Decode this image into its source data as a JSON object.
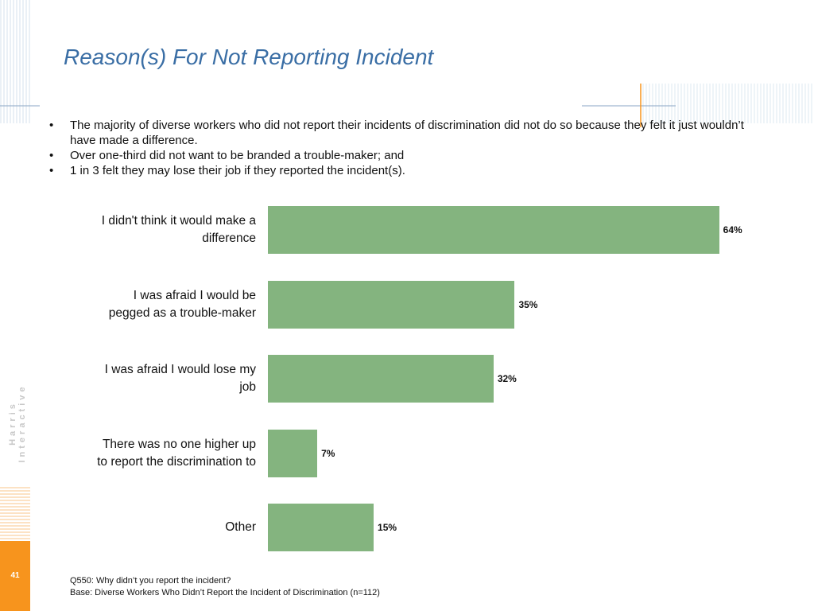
{
  "chart_data": {
    "type": "bar",
    "orientation": "horizontal",
    "title": "Reason(s) For Not Reporting Incident",
    "categories": [
      "I didn't think it would make a difference",
      "I was afraid I would be pegged as a trouble-maker",
      "I was afraid I would lose my job",
      "There was no one higher up to report the discrimination to",
      "Other"
    ],
    "values": [
      64,
      35,
      32,
      7,
      15
    ],
    "value_labels": [
      "64%",
      "35%",
      "32%",
      "7%",
      "15%"
    ],
    "color": "#84b47f"
  },
  "bullets": [
    "The majority of diverse workers who did not report their incidents of discrimination did not do so because they felt it just wouldn’t have made a difference.",
    "Over one-third did not want to be branded a trouble-maker; and",
    "1 in 3 felt they may lose their job if they reported the incident(s)."
  ],
  "footnotes": [
    "Q550: Why didn’t you report the incident?",
    "Base: Diverse Workers Who Didn’t Report the Incident of Discrimination (n=112)"
  ],
  "page_number": "41",
  "brand": "Harris Interactive"
}
